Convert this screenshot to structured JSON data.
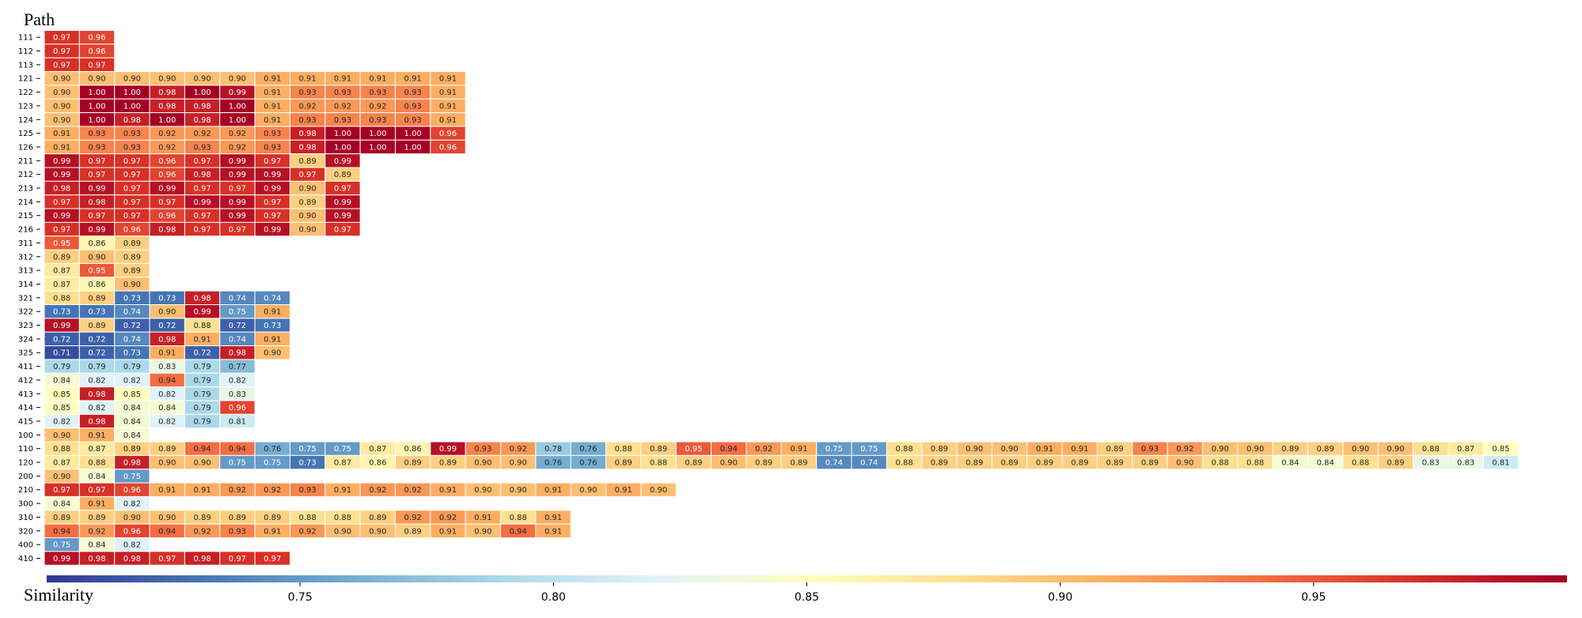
{
  "chart_data": {
    "type": "heatmap",
    "title": "Path",
    "colorbar_label": "Similarity",
    "colorbar_ticks": [
      "0.75",
      "0.80",
      "0.85",
      "0.90",
      "0.95"
    ],
    "color_range": [
      0.7,
      1.0
    ],
    "colormap": "RdYlBu_r",
    "rows": [
      {
        "label": "111",
        "values": [
          "0.97",
          "0.96"
        ]
      },
      {
        "label": "112",
        "values": [
          "0.97",
          "0.96"
        ]
      },
      {
        "label": "113",
        "values": [
          "0.97",
          "0.97"
        ]
      },
      {
        "label": "121",
        "values": [
          "0.90",
          "0.90",
          "0.90",
          "0.90",
          "0.90",
          "0.90",
          "0.91",
          "0.91",
          "0.91",
          "0.91",
          "0.91",
          "0.91"
        ]
      },
      {
        "label": "122",
        "values": [
          "0.90",
          "1.00",
          "1.00",
          "0.98",
          "1.00",
          "0.99",
          "0.91",
          "0.93",
          "0.93",
          "0.93",
          "0.93",
          "0.91"
        ]
      },
      {
        "label": "123",
        "values": [
          "0.90",
          "1.00",
          "1.00",
          "0.98",
          "0.98",
          "1.00",
          "0.91",
          "0.92",
          "0.92",
          "0.92",
          "0.93",
          "0.91"
        ]
      },
      {
        "label": "124",
        "values": [
          "0.90",
          "1.00",
          "0.98",
          "1.00",
          "0.98",
          "1.00",
          "0.91",
          "0.93",
          "0.93",
          "0.93",
          "0.93",
          "0.91"
        ]
      },
      {
        "label": "125",
        "values": [
          "0.91",
          "0.93",
          "0.93",
          "0.92",
          "0.92",
          "0.92",
          "0.93",
          "0.98",
          "1.00",
          "1.00",
          "1.00",
          "0.96"
        ]
      },
      {
        "label": "126",
        "values": [
          "0.91",
          "0.93",
          "0.93",
          "0.92",
          "0.93",
          "0.92",
          "0.93",
          "0.98",
          "1.00",
          "1.00",
          "1.00",
          "0.96"
        ]
      },
      {
        "label": "211",
        "values": [
          "0.99",
          "0.97",
          "0.97",
          "0.96",
          "0.97",
          "0.99",
          "0.97",
          "0.89",
          "0.99"
        ]
      },
      {
        "label": "212",
        "values": [
          "0.99",
          "0.97",
          "0.97",
          "0.96",
          "0.98",
          "0.99",
          "0.99",
          "0.97",
          "0.89"
        ]
      },
      {
        "label": "213",
        "values": [
          "0.98",
          "0.99",
          "0.97",
          "0.99",
          "0.97",
          "0.97",
          "0.99",
          "0.90",
          "0.97"
        ]
      },
      {
        "label": "214",
        "values": [
          "0.97",
          "0.98",
          "0.97",
          "0.97",
          "0.99",
          "0.99",
          "0.97",
          "0.89",
          "0.99"
        ]
      },
      {
        "label": "215",
        "values": [
          "0.99",
          "0.97",
          "0.97",
          "0.96",
          "0.97",
          "0.99",
          "0.97",
          "0.90",
          "0.99"
        ]
      },
      {
        "label": "216",
        "values": [
          "0.97",
          "0.99",
          "0.96",
          "0.98",
          "0.97",
          "0.97",
          "0.99",
          "0.90",
          "0.97"
        ]
      },
      {
        "label": "311",
        "values": [
          "0.95",
          "0.86",
          "0.89"
        ]
      },
      {
        "label": "312",
        "values": [
          "0.89",
          "0.90",
          "0.89"
        ]
      },
      {
        "label": "313",
        "values": [
          "0.87",
          "0.95",
          "0.89"
        ]
      },
      {
        "label": "314",
        "values": [
          "0.87",
          "0.86",
          "0.90"
        ]
      },
      {
        "label": "321",
        "values": [
          "0.88",
          "0.89",
          "0.73",
          "0.73",
          "0.98",
          "0.74",
          "0.74"
        ]
      },
      {
        "label": "322",
        "values": [
          "0.73",
          "0.73",
          "0.74",
          "0.90",
          "0.99",
          "0.75",
          "0.91"
        ]
      },
      {
        "label": "323",
        "values": [
          "0.99",
          "0.89",
          "0.72",
          "0.72",
          "0.88",
          "0.72",
          "0.73"
        ]
      },
      {
        "label": "324",
        "values": [
          "0.72",
          "0.72",
          "0.74",
          "0.98",
          "0.91",
          "0.74",
          "0.91"
        ]
      },
      {
        "label": "325",
        "values": [
          "0.71",
          "0.72",
          "0.73",
          "0.91",
          "0.72",
          "0.98",
          "0.90"
        ]
      },
      {
        "label": "411",
        "values": [
          "0.79",
          "0.79",
          "0.79",
          "0.83",
          "0.79",
          "0.77"
        ]
      },
      {
        "label": "412",
        "values": [
          "0.84",
          "0.82",
          "0.82",
          "0.94",
          "0.79",
          "0.82"
        ]
      },
      {
        "label": "413",
        "values": [
          "0.85",
          "0.98",
          "0.85",
          "0.82",
          "0.79",
          "0.83"
        ]
      },
      {
        "label": "414",
        "values": [
          "0.85",
          "0.82",
          "0.84",
          "0.84",
          "0.79",
          "0.96"
        ]
      },
      {
        "label": "415",
        "values": [
          "0.82",
          "0.98",
          "0.84",
          "0.82",
          "0.79",
          "0.81"
        ]
      },
      {
        "label": "100",
        "values": [
          "0.90",
          "0.91",
          "0.84"
        ]
      },
      {
        "label": "110",
        "values": [
          "0.88",
          "0.87",
          "0.89",
          "0.89",
          "0.94",
          "0.94",
          "0.76",
          "0.75",
          "0.75",
          "0.87",
          "0.86",
          "0.99",
          "0.93",
          "0.92",
          "0.78",
          "0.76",
          "0.88",
          "0.89",
          "0.95",
          "0.94",
          "0.92",
          "0.91",
          "0.75",
          "0.75",
          "0.88",
          "0.89",
          "0.90",
          "0.90",
          "0.91",
          "0.91",
          "0.89",
          "0.93",
          "0.92",
          "0.90",
          "0.90",
          "0.89",
          "0.89",
          "0.90",
          "0.90",
          "0.88",
          "0.87",
          "0.85"
        ]
      },
      {
        "label": "120",
        "values": [
          "0.87",
          "0.88",
          "0.98",
          "0.90",
          "0.90",
          "0.75",
          "0.75",
          "0.73",
          "0.87",
          "0.86",
          "0.89",
          "0.89",
          "0.90",
          "0.90",
          "0.76",
          "0.76",
          "0.89",
          "0.88",
          "0.89",
          "0.90",
          "0.89",
          "0.89",
          "0.74",
          "0.74",
          "0.88",
          "0.89",
          "0.89",
          "0.89",
          "0.89",
          "0.89",
          "0.89",
          "0.89",
          "0.90",
          "0.88",
          "0.88",
          "0.84",
          "0.84",
          "0.88",
          "0.89",
          "0.83",
          "0.83",
          "0.81"
        ]
      },
      {
        "label": "200",
        "values": [
          "0.90",
          "0.84",
          "0.75"
        ]
      },
      {
        "label": "210",
        "values": [
          "0.97",
          "0.97",
          "0.96",
          "0.91",
          "0.91",
          "0.92",
          "0.92",
          "0.93",
          "0.91",
          "0.92",
          "0.92",
          "0.91",
          "0.90",
          "0.90",
          "0.91",
          "0.90",
          "0.91",
          "0.90"
        ]
      },
      {
        "label": "300",
        "values": [
          "0.84",
          "0.91",
          "0.82"
        ]
      },
      {
        "label": "310",
        "values": [
          "0.89",
          "0.89",
          "0.90",
          "0.90",
          "0.89",
          "0.89",
          "0.89",
          "0.88",
          "0.88",
          "0.89",
          "0.92",
          "0.92",
          "0.91",
          "0.88",
          "0.91"
        ]
      },
      {
        "label": "320",
        "values": [
          "0.94",
          "0.92",
          "0.96",
          "0.94",
          "0.92",
          "0.93",
          "0.91",
          "0.92",
          "0.90",
          "0.90",
          "0.89",
          "0.91",
          "0.90",
          "0.94",
          "0.91"
        ]
      },
      {
        "label": "400",
        "values": [
          "0.75",
          "0.84",
          "0.82"
        ]
      },
      {
        "label": "410",
        "values": [
          "0.99",
          "0.98",
          "0.98",
          "0.97",
          "0.98",
          "0.97",
          "0.97"
        ]
      }
    ]
  }
}
